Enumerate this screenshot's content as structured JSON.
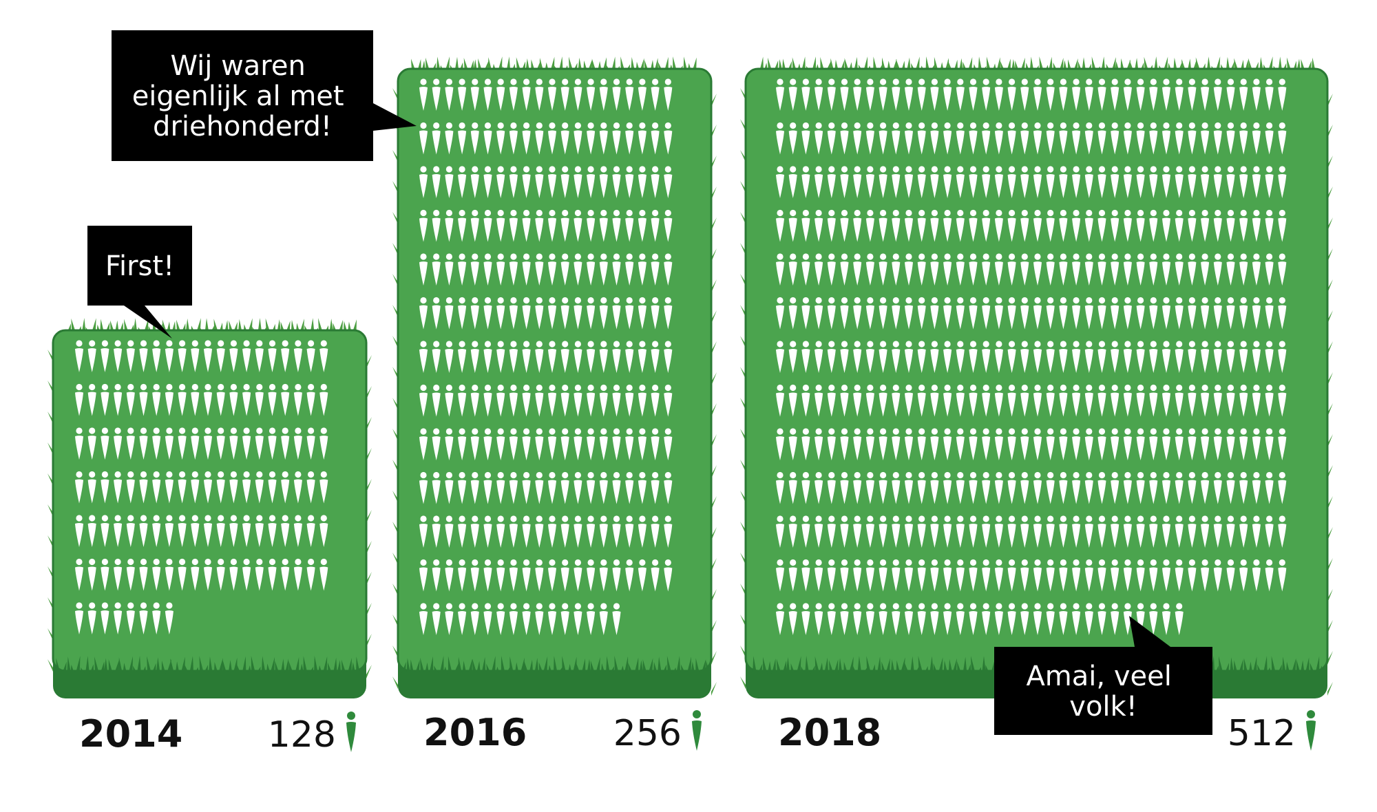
{
  "chart_data": {
    "type": "pictograph",
    "unit": "person-icon",
    "series": [
      {
        "year": "2014",
        "count": 128,
        "count_label": "128"
      },
      {
        "year": "2016",
        "count": 256,
        "count_label": "256"
      },
      {
        "year": "2018",
        "count": 512,
        "count_label": "512"
      }
    ],
    "annotations": [
      {
        "text": "First!",
        "target_year": "2014"
      },
      {
        "text": "Wij waren eigenlijk al met driehonderd!",
        "target_year": "2016"
      },
      {
        "text": "Amai, veel volk!",
        "target_year": "2018"
      }
    ],
    "colors": {
      "field": "#4ba44e",
      "field_dark": "#2a7a34",
      "grass": "#4a9e40",
      "icon": "#ffffff",
      "legend_icon": "#2f8a3c",
      "bubble": "#000000"
    }
  }
}
